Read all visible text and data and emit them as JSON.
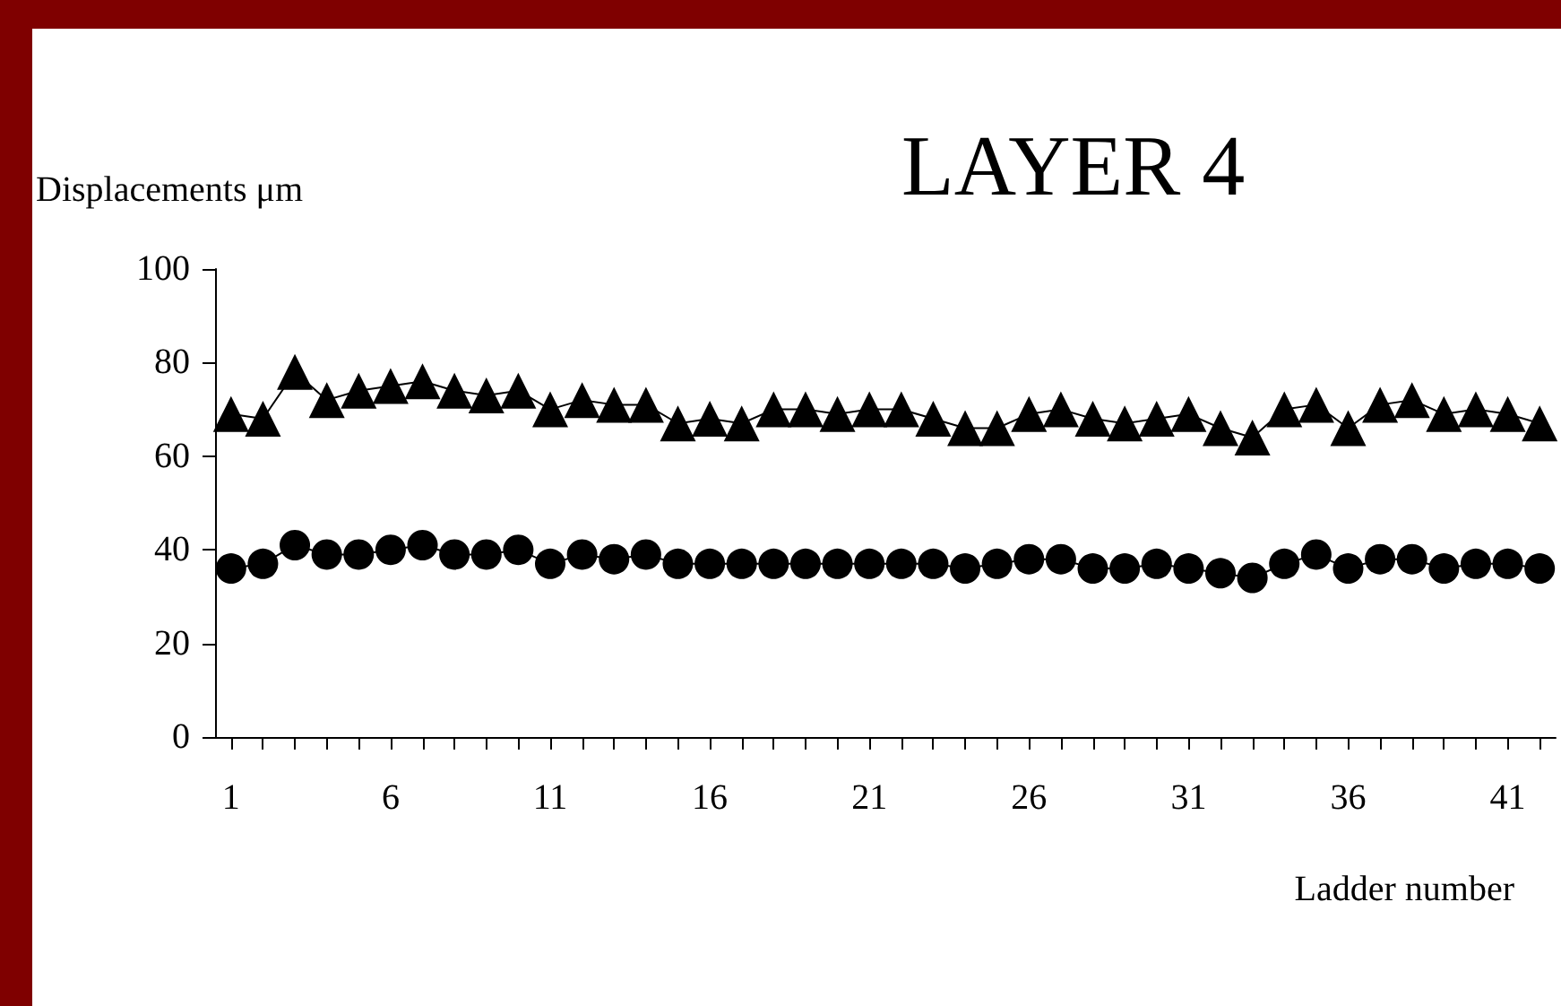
{
  "chart_data": {
    "type": "line",
    "title": "LAYER 4",
    "xlabel": "Ladder number",
    "ylabel": "Displacements μm",
    "x": [
      1,
      2,
      3,
      4,
      5,
      6,
      7,
      8,
      9,
      10,
      11,
      12,
      13,
      14,
      15,
      16,
      17,
      18,
      19,
      20,
      21,
      22,
      23,
      24,
      25,
      26,
      27,
      28,
      29,
      30,
      31,
      32,
      33,
      34,
      35,
      36,
      37,
      38,
      39,
      40,
      41,
      42
    ],
    "xlim": [
      0.5,
      42.5
    ],
    "xticks": [
      1,
      {
        "value": 2,
        "label": null
      },
      {
        "value": 3,
        "label": null
      },
      {
        "value": 4,
        "label": null
      },
      {
        "value": 5,
        "label": null
      },
      6,
      {
        "value": 7,
        "label": null
      },
      {
        "value": 8,
        "label": null
      },
      {
        "value": 9,
        "label": null
      },
      {
        "value": 10,
        "label": null
      },
      11,
      {
        "value": 12,
        "label": null
      },
      {
        "value": 13,
        "label": null
      },
      {
        "value": 14,
        "label": null
      },
      {
        "value": 15,
        "label": null
      },
      16,
      {
        "value": 17,
        "label": null
      },
      {
        "value": 18,
        "label": null
      },
      {
        "value": 19,
        "label": null
      },
      {
        "value": 20,
        "label": null
      },
      21,
      {
        "value": 22,
        "label": null
      },
      {
        "value": 23,
        "label": null
      },
      {
        "value": 24,
        "label": null
      },
      {
        "value": 25,
        "label": null
      },
      26,
      {
        "value": 27,
        "label": null
      },
      {
        "value": 28,
        "label": null
      },
      {
        "value": 29,
        "label": null
      },
      {
        "value": 30,
        "label": null
      },
      31,
      {
        "value": 32,
        "label": null
      },
      {
        "value": 33,
        "label": null
      },
      {
        "value": 34,
        "label": null
      },
      {
        "value": 35,
        "label": null
      },
      36,
      {
        "value": 37,
        "label": null
      },
      {
        "value": 38,
        "label": null
      },
      {
        "value": 39,
        "label": null
      },
      {
        "value": 40,
        "label": null
      },
      41,
      {
        "value": 42,
        "label": null
      }
    ],
    "series": [
      {
        "color": "#000000",
        "marker": "triangle",
        "values": [
          69,
          68,
          78,
          72,
          74,
          75,
          76,
          74,
          73,
          74,
          70,
          72,
          71,
          71,
          67,
          68,
          67,
          70,
          70,
          69,
          70,
          70,
          68,
          66,
          66,
          69,
          70,
          68,
          67,
          68,
          69,
          66,
          64,
          70,
          71,
          66,
          71,
          72,
          69,
          70,
          69,
          67
        ]
      },
      {
        "color": "#000000",
        "marker": "circle",
        "values": [
          36,
          37,
          41,
          39,
          39,
          40,
          41,
          39,
          39,
          40,
          37,
          39,
          38,
          39,
          37,
          37,
          37,
          37,
          37,
          37,
          37,
          37,
          37,
          36,
          37,
          38,
          38,
          36,
          36,
          37,
          36,
          35,
          34,
          37,
          39,
          36,
          38,
          38,
          36,
          37,
          37,
          36
        ]
      }
    ],
    "ylim": [
      0,
      100
    ],
    "yticks": [
      0,
      20,
      40,
      60,
      80,
      100
    ],
    "grid": false,
    "line_style": "solid"
  }
}
